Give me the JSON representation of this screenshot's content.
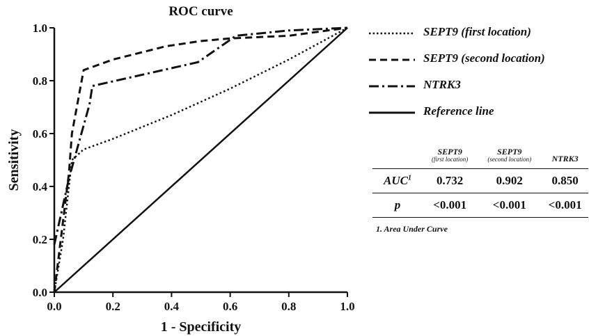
{
  "chart_data": {
    "type": "line",
    "title": "ROC curve",
    "xlabel": "1 - Specificity",
    "ylabel": "Sensitivity",
    "xlim": [
      0,
      1
    ],
    "ylim": [
      0,
      1
    ],
    "xticks": [
      "0.0",
      "0.2",
      "0.4",
      "0.6",
      "0.8",
      "1.0"
    ],
    "yticks": [
      "0.0",
      "0.2",
      "0.4",
      "0.6",
      "0.8",
      "1.0"
    ],
    "grid": false,
    "legend_position": "right",
    "series": [
      {
        "name": "SEPT9 (first location)",
        "style": "dotted",
        "x": [
          0,
          0.03,
          0.05,
          0.06,
          0.1,
          0.2,
          0.4,
          0.6,
          0.8,
          1.0
        ],
        "y": [
          0,
          0.2,
          0.4,
          0.5,
          0.54,
          0.58,
          0.67,
          0.77,
          0.88,
          1.0
        ]
      },
      {
        "name": "SEPT9 (second location)",
        "style": "dashed",
        "x": [
          0,
          0.05,
          0.06,
          0.1,
          0.2,
          0.38,
          0.5,
          0.6,
          0.8,
          1.0
        ],
        "y": [
          0,
          0.45,
          0.6,
          0.84,
          0.88,
          0.93,
          0.95,
          0.96,
          0.97,
          1.0
        ]
      },
      {
        "name": "NTRK3",
        "style": "dashdot",
        "x": [
          0,
          0.05,
          0.12,
          0.13,
          0.49,
          0.62,
          0.8,
          1.0
        ],
        "y": [
          0.18,
          0.43,
          0.71,
          0.78,
          0.87,
          0.97,
          0.99,
          1.0
        ]
      },
      {
        "name": "Reference line",
        "style": "solid",
        "x": [
          0,
          1
        ],
        "y": [
          0,
          1
        ]
      }
    ]
  },
  "table": {
    "columns": [
      {
        "main": "SEPT9",
        "sub": "(first location)"
      },
      {
        "main": "SEPT9",
        "sub": "(second location)"
      },
      {
        "main": "NTRK3",
        "sub": ""
      }
    ],
    "rows": [
      {
        "label": "AUC",
        "sup": "1",
        "values": [
          "0.732",
          "0.902",
          "0.850"
        ]
      },
      {
        "label": "p",
        "sup": "",
        "values": [
          "<0.001",
          "<0.001",
          "<0.001"
        ]
      }
    ],
    "footnote": "1. Area Under Curve"
  }
}
